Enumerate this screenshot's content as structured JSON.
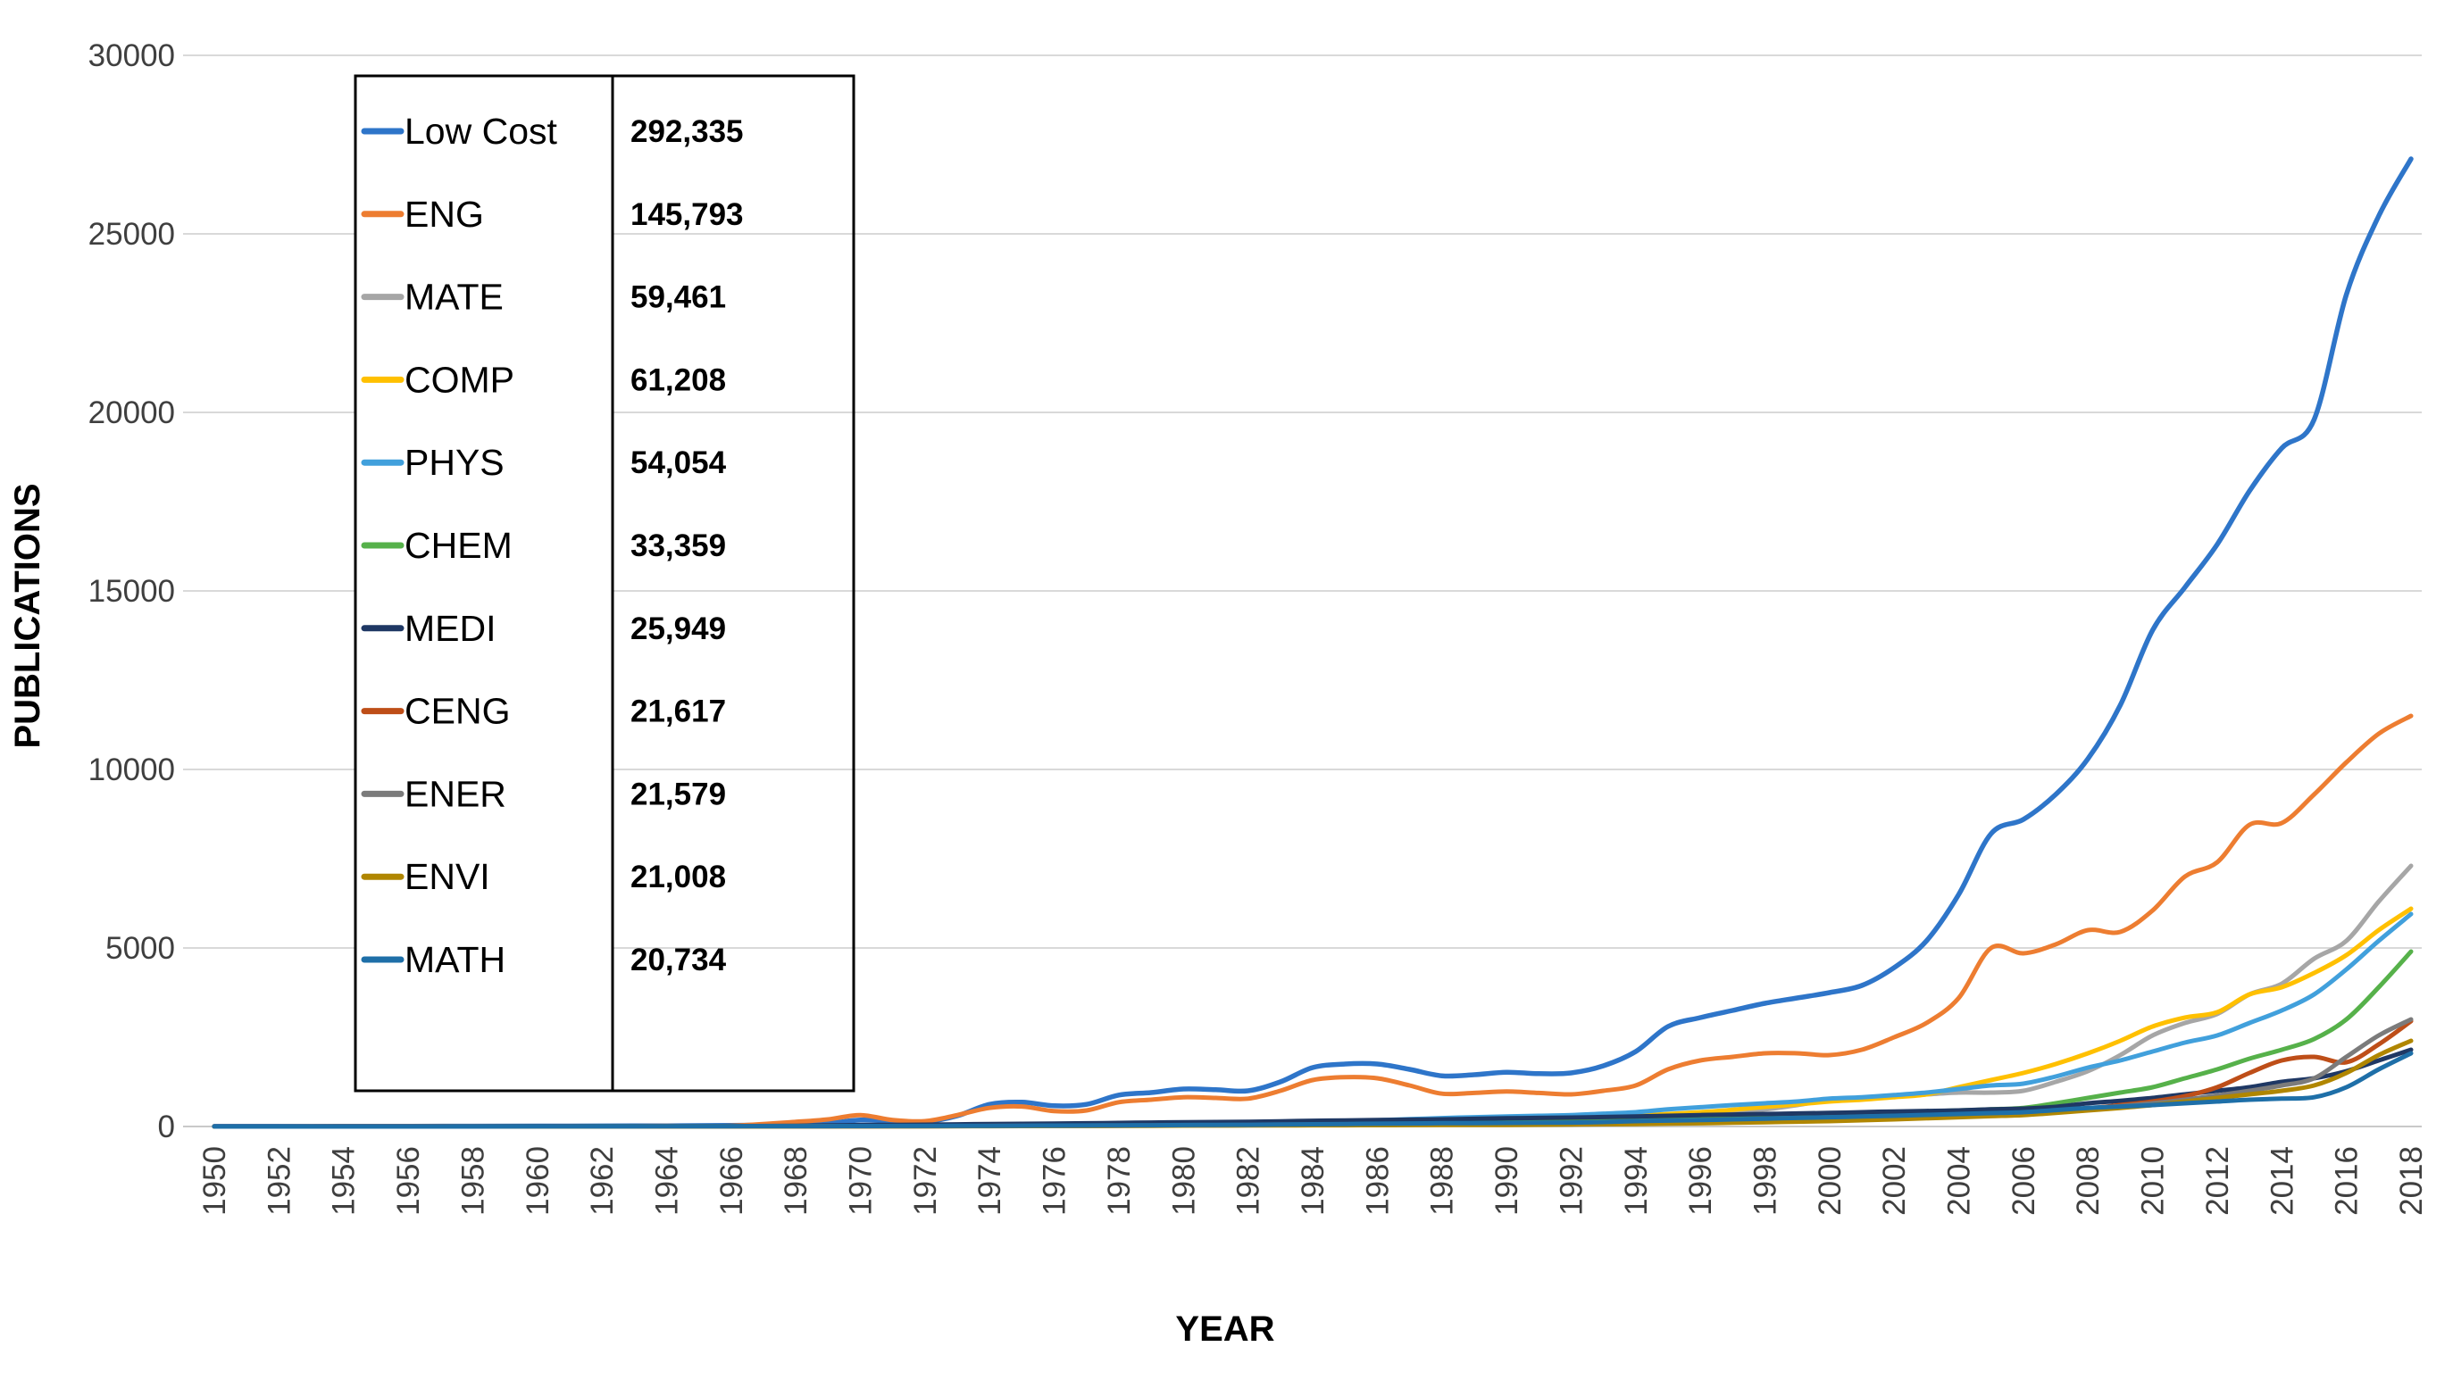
{
  "chart_data": {
    "type": "line",
    "title": "",
    "xlabel": "YEAR",
    "ylabel": "PUBLICATIONS",
    "ylim": [
      0,
      30000
    ],
    "yticks": [
      0,
      5000,
      10000,
      15000,
      20000,
      25000,
      30000
    ],
    "xticks": [
      1950,
      1952,
      1954,
      1956,
      1958,
      1960,
      1962,
      1964,
      1966,
      1968,
      1970,
      1972,
      1974,
      1976,
      1978,
      1980,
      1982,
      1984,
      1986,
      1988,
      1990,
      1992,
      1994,
      1996,
      1998,
      2000,
      2002,
      2004,
      2006,
      2008,
      2010,
      2012,
      2014,
      2016,
      2018
    ],
    "grid": "horizontal",
    "legend_position": "upper-left",
    "x": [
      1950,
      1952,
      1954,
      1956,
      1958,
      1960,
      1962,
      1964,
      1966,
      1968,
      1969,
      1970,
      1971,
      1972,
      1973,
      1974,
      1975,
      1976,
      1977,
      1978,
      1979,
      1980,
      1981,
      1982,
      1983,
      1984,
      1985,
      1986,
      1987,
      1988,
      1989,
      1990,
      1991,
      1992,
      1993,
      1994,
      1995,
      1996,
      1997,
      1998,
      1999,
      2000,
      2001,
      2002,
      2003,
      2004,
      2005,
      2006,
      2007,
      2008,
      2009,
      2010,
      2011,
      2012,
      2013,
      2014,
      2015,
      2016,
      2017,
      2018
    ],
    "series": [
      {
        "name": "Low Cost",
        "total": "292,335",
        "color": "#2E75C9",
        "width": 5.5,
        "values": [
          4,
          5,
          6,
          8,
          10,
          12,
          15,
          20,
          30,
          60,
          90,
          180,
          150,
          130,
          300,
          620,
          680,
          580,
          620,
          880,
          950,
          1050,
          1030,
          1000,
          1250,
          1650,
          1750,
          1750,
          1600,
          1420,
          1450,
          1520,
          1480,
          1500,
          1700,
          2100,
          2800,
          3050,
          3250,
          3450,
          3600,
          3750,
          3950,
          4450,
          5200,
          6500,
          8200,
          8600,
          9300,
          10300,
          11800,
          13900,
          15100,
          16300,
          17800,
          19000,
          19800,
          23300,
          25500,
          27100
        ]
      },
      {
        "name": "ENG",
        "total": "145,793",
        "color": "#ED7D31",
        "width": 5,
        "values": [
          2,
          3,
          4,
          5,
          6,
          8,
          10,
          14,
          20,
          130,
          200,
          320,
          180,
          150,
          320,
          520,
          560,
          430,
          450,
          680,
          750,
          820,
          800,
          780,
          1000,
          1300,
          1380,
          1350,
          1150,
          920,
          940,
          980,
          940,
          900,
          1000,
          1150,
          1600,
          1850,
          1950,
          2050,
          2050,
          2000,
          2150,
          2500,
          2900,
          3600,
          5000,
          4850,
          5100,
          5500,
          5450,
          6050,
          7000,
          7400,
          8450,
          8500,
          9300,
          10200,
          11000,
          11500
        ]
      },
      {
        "name": "MATE",
        "total": "59,461",
        "color": "#A6A6A6",
        "width": 5,
        "values": [
          0,
          0,
          0,
          0,
          0,
          1,
          2,
          3,
          5,
          8,
          10,
          12,
          14,
          16,
          18,
          22,
          25,
          28,
          32,
          38,
          45,
          55,
          65,
          75,
          90,
          105,
          120,
          135,
          155,
          175,
          200,
          220,
          230,
          240,
          270,
          300,
          340,
          380,
          430,
          480,
          600,
          750,
          800,
          850,
          900,
          950,
          950,
          1000,
          1250,
          1550,
          2000,
          2550,
          2900,
          3150,
          3700,
          4000,
          4700,
          5200,
          6300,
          7300
        ]
      },
      {
        "name": "COMP",
        "total": "61,208",
        "color": "#FFC000",
        "width": 5,
        "values": [
          0,
          0,
          0,
          0,
          0,
          1,
          2,
          3,
          5,
          8,
          10,
          12,
          14,
          16,
          18,
          20,
          24,
          28,
          30,
          34,
          38,
          45,
          55,
          65,
          75,
          85,
          100,
          120,
          140,
          160,
          180,
          200,
          220,
          240,
          270,
          300,
          350,
          400,
          470,
          550,
          620,
          700,
          750,
          820,
          900,
          1100,
          1300,
          1500,
          1750,
          2050,
          2400,
          2800,
          3050,
          3200,
          3700,
          3900,
          4300,
          4800,
          5500,
          6100
        ]
      },
      {
        "name": "PHYS",
        "total": "54,054",
        "color": "#41A0DC",
        "width": 5,
        "values": [
          0,
          0,
          1,
          1,
          2,
          3,
          5,
          8,
          10,
          12,
          14,
          16,
          18,
          22,
          26,
          32,
          38,
          45,
          52,
          60,
          70,
          80,
          95,
          110,
          125,
          140,
          155,
          175,
          205,
          235,
          260,
          280,
          300,
          320,
          360,
          400,
          480,
          540,
          600,
          650,
          700,
          780,
          820,
          880,
          950,
          1050,
          1150,
          1200,
          1400,
          1650,
          1850,
          2100,
          2350,
          2550,
          2900,
          3250,
          3700,
          4400,
          5200,
          5950
        ]
      },
      {
        "name": "CHEM",
        "total": "33,359",
        "color": "#56B14A",
        "width": 5,
        "values": [
          0,
          0,
          0,
          0,
          1,
          1,
          2,
          3,
          5,
          8,
          9,
          10,
          12,
          14,
          16,
          18,
          20,
          24,
          28,
          32,
          36,
          40,
          46,
          52,
          60,
          70,
          80,
          90,
          100,
          110,
          115,
          120,
          125,
          135,
          155,
          180,
          200,
          220,
          240,
          260,
          280,
          300,
          340,
          380,
          420,
          450,
          480,
          520,
          650,
          800,
          950,
          1100,
          1350,
          1600,
          1900,
          2150,
          2450,
          3000,
          3900,
          4900
        ]
      },
      {
        "name": "MEDI",
        "total": "25,949",
        "color": "#1F3864",
        "width": 5,
        "values": [
          1,
          1,
          2,
          2,
          3,
          4,
          5,
          8,
          10,
          20,
          30,
          40,
          45,
          50,
          60,
          70,
          75,
          80,
          90,
          100,
          110,
          120,
          125,
          130,
          145,
          160,
          170,
          180,
          190,
          200,
          215,
          230,
          240,
          250,
          265,
          280,
          300,
          320,
          335,
          350,
          365,
          380,
          400,
          420,
          435,
          450,
          480,
          500,
          550,
          650,
          720,
          800,
          900,
          1000,
          1100,
          1250,
          1350,
          1550,
          1850,
          2150
        ]
      },
      {
        "name": "CENG",
        "total": "21,617",
        "color": "#BE4E18",
        "width": 5,
        "values": [
          0,
          0,
          0,
          0,
          0,
          1,
          1,
          2,
          3,
          5,
          6,
          8,
          9,
          10,
          12,
          14,
          16,
          18,
          20,
          24,
          28,
          32,
          36,
          40,
          44,
          48,
          52,
          56,
          60,
          60,
          60,
          60,
          65,
          70,
          80,
          90,
          105,
          120,
          135,
          150,
          165,
          180,
          200,
          220,
          250,
          280,
          300,
          330,
          420,
          500,
          600,
          700,
          850,
          1100,
          1500,
          1850,
          1950,
          1800,
          2300,
          2950
        ]
      },
      {
        "name": "ENER",
        "total": "21,579",
        "color": "#7B7B7B",
        "width": 5,
        "values": [
          0,
          0,
          0,
          0,
          0,
          1,
          1,
          2,
          3,
          5,
          6,
          7,
          8,
          9,
          10,
          12,
          14,
          16,
          18,
          20,
          24,
          28,
          30,
          34,
          38,
          42,
          44,
          46,
          48,
          50,
          50,
          50,
          55,
          60,
          70,
          80,
          90,
          100,
          115,
          130,
          150,
          170,
          195,
          220,
          250,
          280,
          310,
          340,
          420,
          500,
          570,
          650,
          750,
          870,
          1000,
          1150,
          1350,
          1950,
          2550,
          3000
        ]
      },
      {
        "name": "ENVI",
        "total": "21,008",
        "color": "#B08600",
        "width": 5,
        "values": [
          0,
          0,
          0,
          0,
          0,
          1,
          1,
          2,
          3,
          4,
          5,
          6,
          7,
          8,
          9,
          10,
          12,
          14,
          16,
          18,
          20,
          25,
          28,
          30,
          32,
          34,
          36,
          38,
          40,
          42,
          44,
          45,
          50,
          55,
          62,
          70,
          80,
          90,
          105,
          120,
          135,
          150,
          175,
          200,
          230,
          260,
          290,
          320,
          380,
          450,
          520,
          600,
          700,
          800,
          900,
          1000,
          1150,
          1500,
          2000,
          2400
        ]
      },
      {
        "name": "MATH",
        "total": "20,734",
        "color": "#1E6FA8",
        "width": 5,
        "values": [
          0,
          0,
          0,
          1,
          1,
          2,
          3,
          5,
          8,
          10,
          11,
          12,
          14,
          16,
          18,
          20,
          22,
          25,
          28,
          32,
          36,
          40,
          44,
          48,
          55,
          62,
          70,
          78,
          85,
          92,
          96,
          100,
          105,
          110,
          125,
          150,
          165,
          180,
          200,
          220,
          240,
          260,
          280,
          300,
          325,
          350,
          375,
          400,
          460,
          520,
          560,
          600,
          650,
          700,
          750,
          780,
          820,
          1100,
          1600,
          2050
        ]
      }
    ]
  },
  "colors": {
    "gridline": "#D9D9D9",
    "axis_line": "#C9C9C9",
    "tick_text": "#3F3F3F",
    "legend_border": "#000000",
    "legend_text": "#000000"
  }
}
